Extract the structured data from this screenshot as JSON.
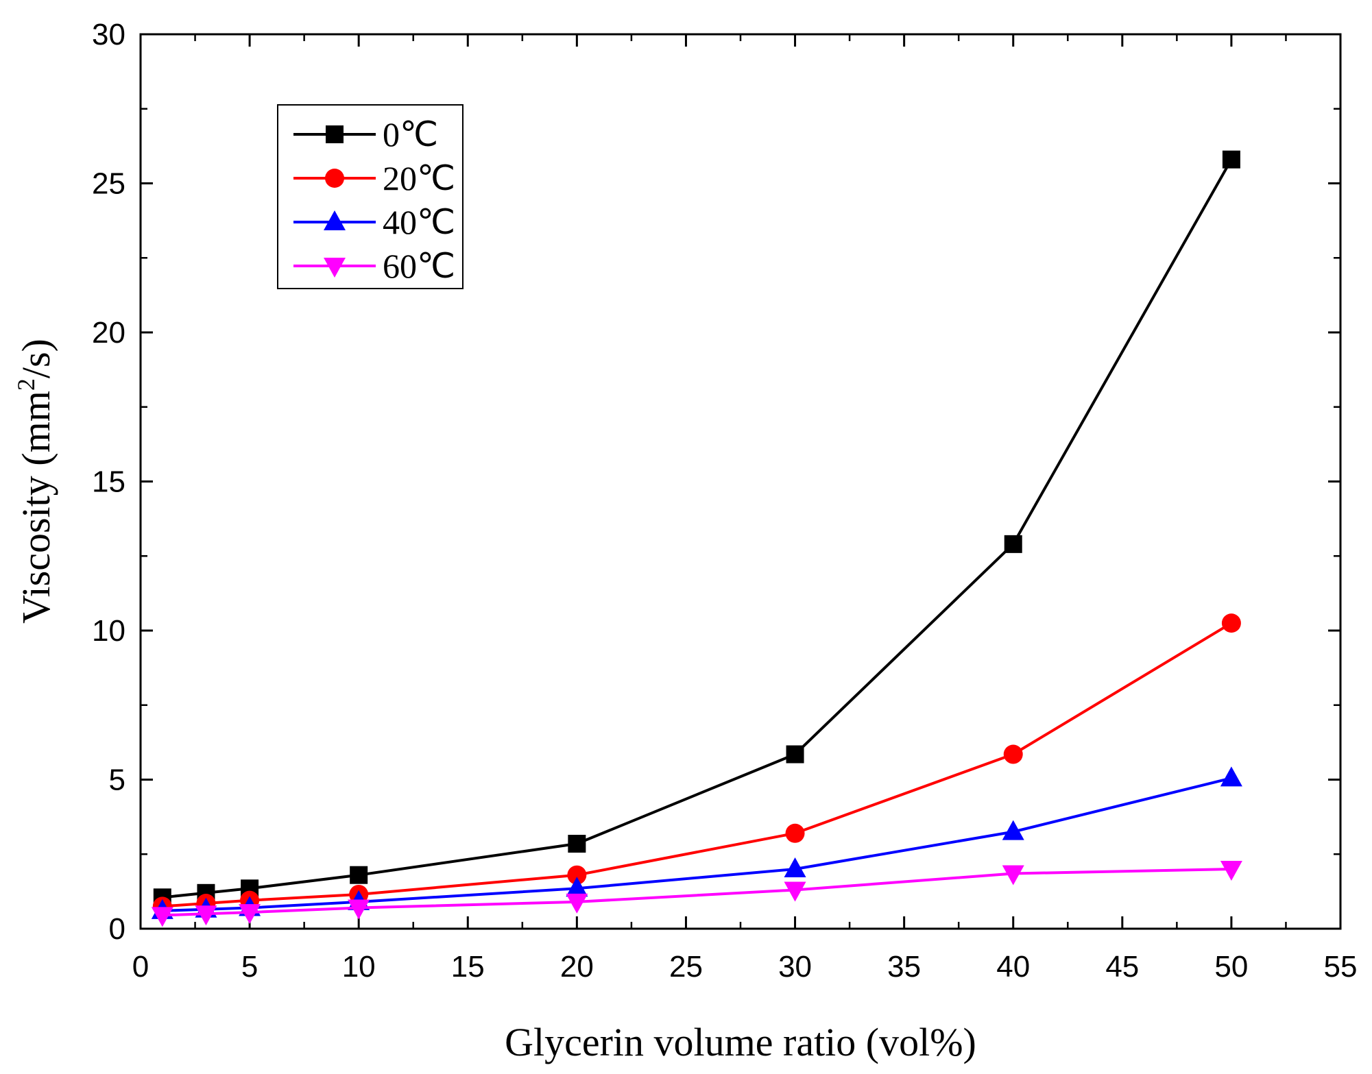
{
  "chart_data": {
    "type": "line",
    "title": "",
    "xlabel": "Glycerin volume ratio (vol%)",
    "ylabel": {
      "prefix": "Viscosity (mm",
      "sup": "2",
      "suffix": "/s)"
    },
    "xlim": [
      0,
      55
    ],
    "ylim": [
      0,
      30
    ],
    "x_ticks": [
      0,
      5,
      10,
      15,
      20,
      25,
      30,
      35,
      40,
      45,
      50,
      55
    ],
    "y_ticks": [
      0,
      5,
      10,
      15,
      20,
      25,
      30
    ],
    "grid": false,
    "legend_position": "top-left",
    "x": [
      1,
      3,
      5,
      10,
      20,
      30,
      40,
      50
    ],
    "series": [
      {
        "name": "0℃",
        "color": "#000000",
        "marker": "square",
        "values": [
          1.05,
          1.2,
          1.35,
          1.8,
          2.85,
          5.85,
          12.9,
          25.8
        ]
      },
      {
        "name": "20℃",
        "color": "#ff0000",
        "marker": "circle",
        "values": [
          0.75,
          0.85,
          0.95,
          1.15,
          1.8,
          3.2,
          5.85,
          10.25
        ]
      },
      {
        "name": "40℃",
        "color": "#0000ff",
        "marker": "triangle-up",
        "values": [
          0.6,
          0.65,
          0.7,
          0.9,
          1.35,
          2.0,
          3.25,
          5.05
        ]
      },
      {
        "name": "60℃",
        "color": "#ff00ff",
        "marker": "triangle-down",
        "values": [
          0.45,
          0.5,
          0.55,
          0.7,
          0.9,
          1.3,
          1.85,
          2.0
        ]
      }
    ]
  }
}
